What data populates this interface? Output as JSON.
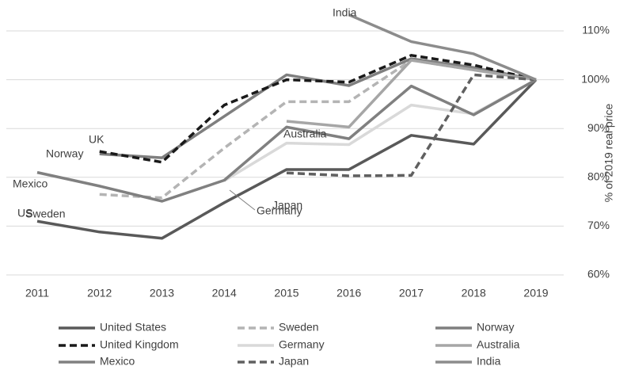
{
  "chart_data": {
    "type": "line",
    "categories": [
      "2011",
      "2012",
      "2013",
      "2014",
      "2015",
      "2016",
      "2017",
      "2018",
      "2019"
    ],
    "y_axis_label": "% of 2019 real price",
    "y_axis_side": "right",
    "ylim": [
      60,
      110
    ],
    "yticks": [
      {
        "value": 60,
        "label": "60%"
      },
      {
        "value": 70,
        "label": "70%"
      },
      {
        "value": 80,
        "label": "80%"
      },
      {
        "value": 90,
        "label": "90%"
      },
      {
        "value": 100,
        "label": "100%"
      },
      {
        "value": 110,
        "label": "110%"
      }
    ],
    "grid": true,
    "legend": "bottom",
    "series": [
      {
        "name": "United States",
        "color": "#595959",
        "dashed": false,
        "values": [
          71,
          68.8,
          67.5,
          74.8,
          81.6,
          81.6,
          88.6,
          86.8,
          100
        ]
      },
      {
        "name": "Sweden",
        "color": "#b4b4b4",
        "dashed": true,
        "values": [
          null,
          76.5,
          75.8,
          86,
          95.5,
          95.5,
          104,
          102,
          100
        ]
      },
      {
        "name": "Norway",
        "color": "#7f7f7f",
        "dashed": false,
        "values": [
          null,
          84.8,
          84,
          92.5,
          101,
          98.8,
          104.3,
          102.5,
          100
        ]
      },
      {
        "name": "United Kingdom",
        "color": "#1a1a1a",
        "dashed": true,
        "values": [
          null,
          85.3,
          83.1,
          94.8,
          100,
          99.5,
          105,
          103,
          100
        ]
      },
      {
        "name": "Germany",
        "color": "#d9d9d9",
        "dashed": false,
        "values": [
          null,
          null,
          null,
          79.3,
          87,
          86.7,
          94.8,
          93,
          100
        ]
      },
      {
        "name": "Australia",
        "color": "#a6a6a6",
        "dashed": false,
        "values": [
          null,
          null,
          null,
          null,
          91.5,
          90.3,
          104,
          102,
          100
        ]
      },
      {
        "name": "Mexico",
        "color": "#808080",
        "dashed": false,
        "values": [
          81,
          78.2,
          75.1,
          79.4,
          90.3,
          87.9,
          98.7,
          92.8,
          100
        ]
      },
      {
        "name": "Japan",
        "color": "#606060",
        "dashed": true,
        "values": [
          null,
          null,
          null,
          null,
          80.9,
          80.3,
          80.4,
          101,
          100
        ]
      },
      {
        "name": "India",
        "color": "#8c8c8c",
        "dashed": false,
        "values": [
          null,
          null,
          null,
          null,
          null,
          113.3,
          107.8,
          105.3,
          100
        ]
      }
    ],
    "annotations": [
      "India",
      "UK",
      "Norway",
      "Mexico",
      "Sweden",
      "Australia",
      "Japan",
      "Germany",
      "US"
    ]
  }
}
